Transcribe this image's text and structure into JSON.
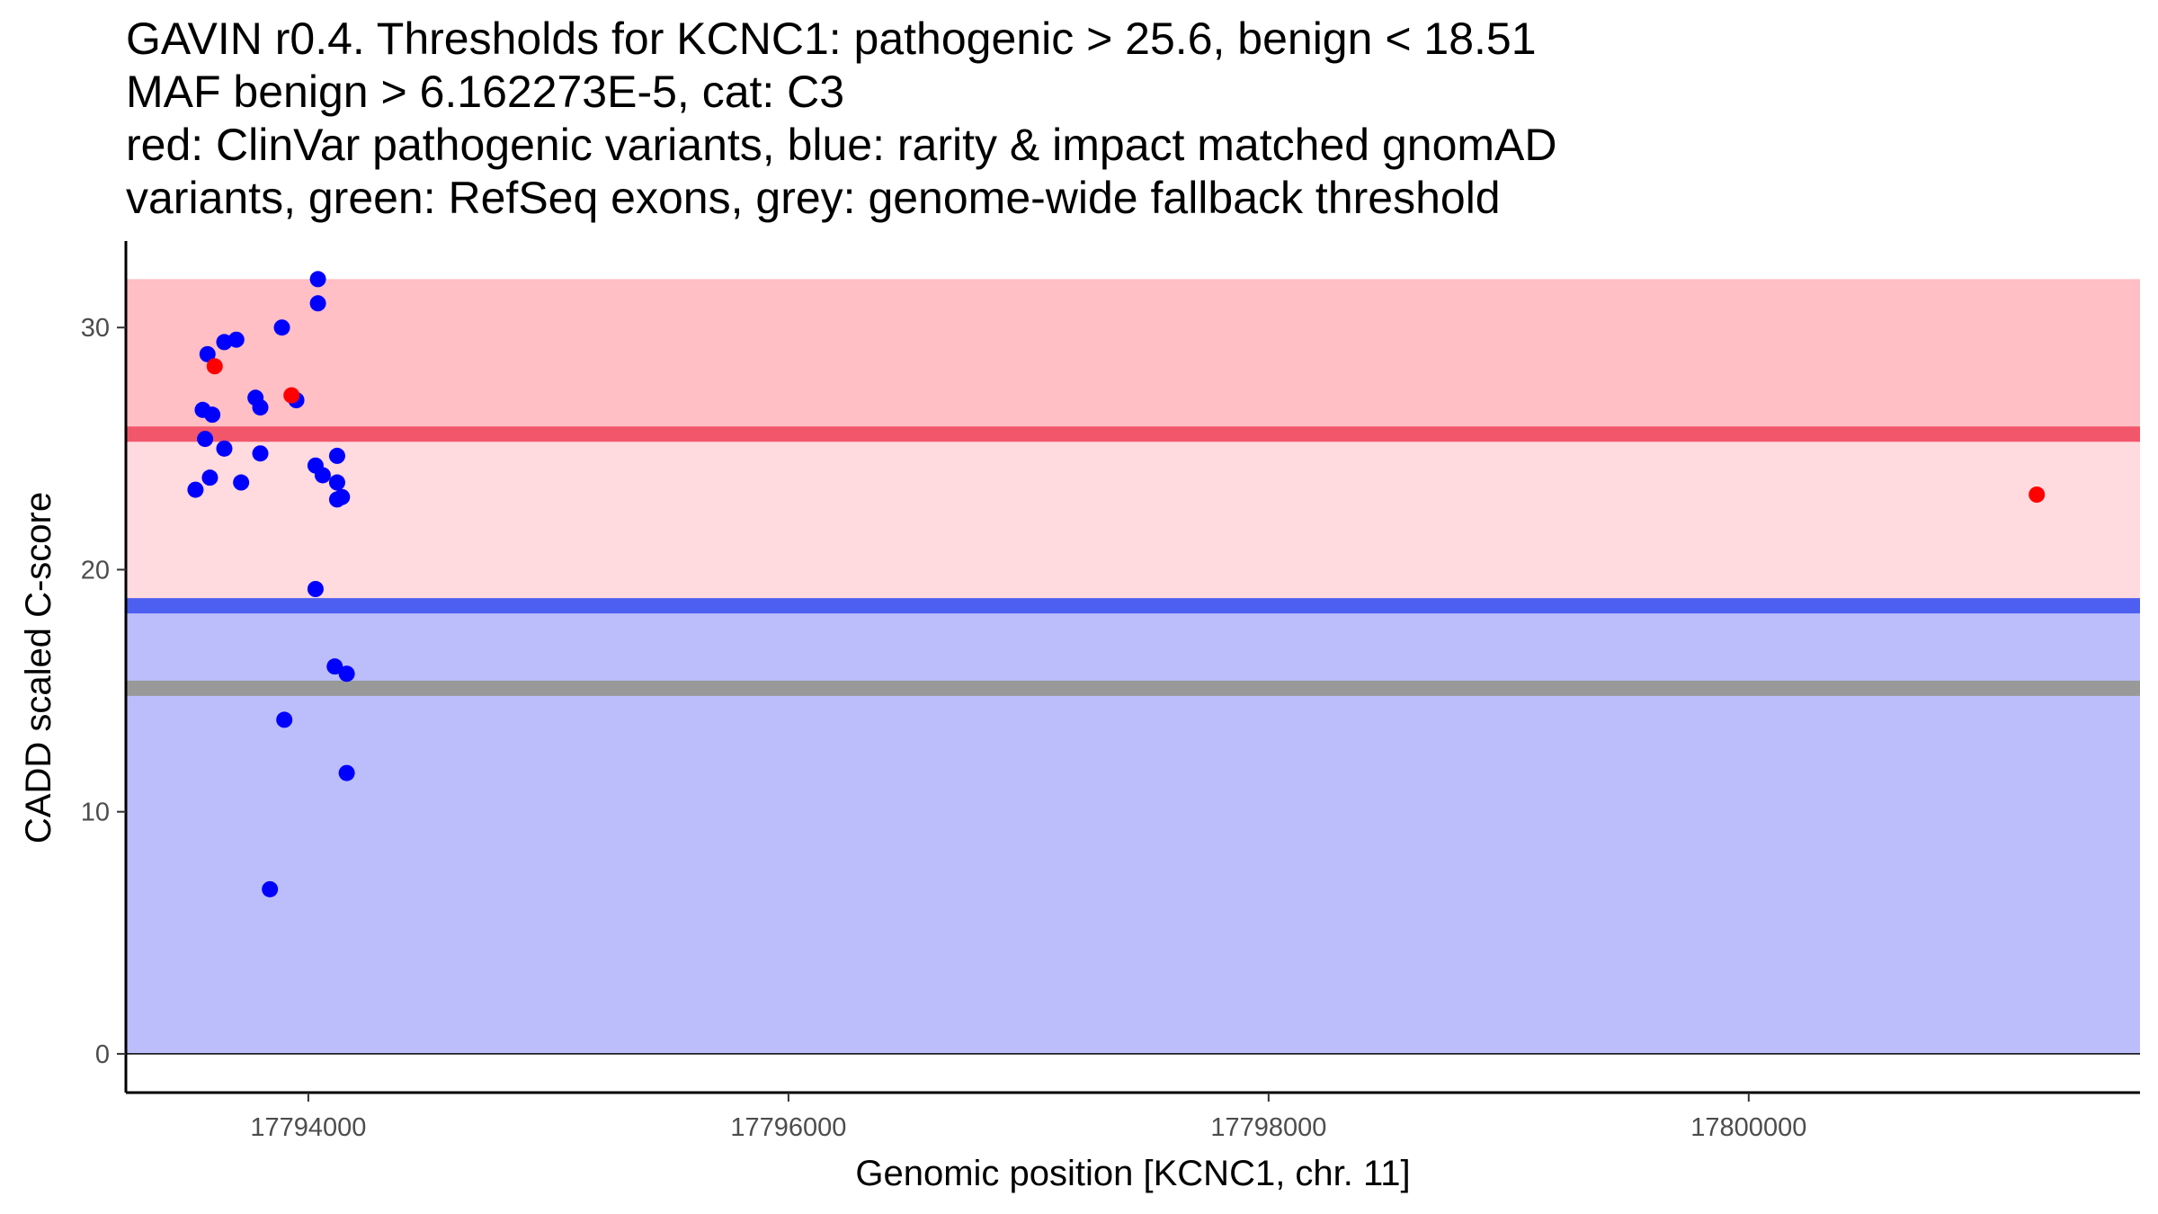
{
  "title": {
    "lines": [
      "GAVIN r0.4. Thresholds for KCNC1: pathogenic > 25.6, benign < 18.51",
      "MAF benign > 6.162273E-5, cat: C3",
      "red: ClinVar pathogenic variants, blue: rarity & impact matched gnomAD",
      "variants, green: RefSeq exons, grey: genome-wide fallback threshold"
    ]
  },
  "chart_data": {
    "type": "scatter",
    "xlabel": "Genomic position [KCNC1, chr. 11]",
    "ylabel": "CADD scaled C-score",
    "xlim": [
      17793240,
      17801630
    ],
    "ylim": [
      -1.6,
      33.5
    ],
    "x_ticks": [
      17794000,
      17796000,
      17798000,
      17800000
    ],
    "x_tick_labels": [
      "17794000",
      "17796000",
      "17798000",
      "17800000"
    ],
    "y_ticks": [
      0,
      10,
      20,
      30
    ],
    "y_tick_labels": [
      "0",
      "10",
      "20",
      "30"
    ],
    "grid": false,
    "bands": [
      {
        "name": "pathogenic-band",
        "ymin": 25.6,
        "ymax": 32,
        "color": "#ff7f8a",
        "opacity": 0.5
      },
      {
        "name": "intermediate-band",
        "ymin": 18.51,
        "ymax": 25.6,
        "color": "#ffb6be",
        "opacity": 0.5
      },
      {
        "name": "benign-band",
        "ymin": 0,
        "ymax": 18.51,
        "color": "#7c82f5",
        "opacity": 0.52
      }
    ],
    "threshold_lines": [
      {
        "name": "pathogenic-threshold-line",
        "y": 25.6,
        "color": "#f2566b"
      },
      {
        "name": "benign-threshold-line",
        "y": 18.51,
        "color": "#4d5ff0"
      },
      {
        "name": "fallback-threshold-line",
        "y": 15.1,
        "color": "#999999"
      }
    ],
    "series": [
      {
        "name": "gnomAD matched variants",
        "color": "#0000ff",
        "points": [
          [
            17793530,
            23.3
          ],
          [
            17793560,
            26.6
          ],
          [
            17793570,
            25.4
          ],
          [
            17793580,
            28.9
          ],
          [
            17793590,
            23.8
          ],
          [
            17793600,
            26.4
          ],
          [
            17793650,
            25.0
          ],
          [
            17793650,
            29.4
          ],
          [
            17793700,
            29.5
          ],
          [
            17793720,
            23.6
          ],
          [
            17793780,
            27.1
          ],
          [
            17793800,
            26.7
          ],
          [
            17793800,
            24.8
          ],
          [
            17793840,
            6.8
          ],
          [
            17793890,
            30.0
          ],
          [
            17793900,
            13.8
          ],
          [
            17793950,
            27.0
          ],
          [
            17794030,
            19.2
          ],
          [
            17794030,
            24.3
          ],
          [
            17794040,
            32.0
          ],
          [
            17794040,
            31.0
          ],
          [
            17794060,
            23.9
          ],
          [
            17794110,
            16.0
          ],
          [
            17794120,
            22.9
          ],
          [
            17794120,
            24.7
          ],
          [
            17794120,
            23.6
          ],
          [
            17794140,
            23.0
          ],
          [
            17794160,
            11.6
          ],
          [
            17794160,
            15.7
          ]
        ]
      },
      {
        "name": "ClinVar pathogenic variants",
        "color": "#ff0000",
        "points": [
          [
            17793610,
            28.4
          ],
          [
            17793930,
            27.2
          ],
          [
            17801200,
            23.1
          ]
        ]
      }
    ]
  }
}
